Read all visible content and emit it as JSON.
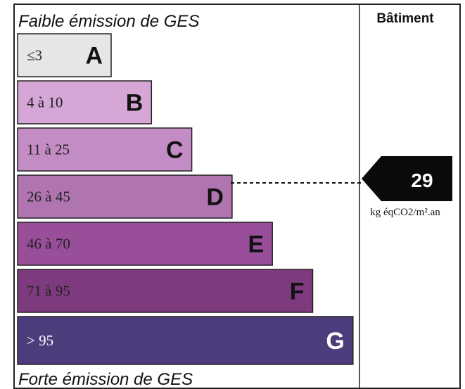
{
  "header": {
    "top_label": "Faible émission de GES",
    "bottom_label": "Forte émission de GES",
    "column_title": "Bâtiment"
  },
  "rows": [
    {
      "range": "≤3",
      "letter": "A",
      "color": "#e6e6e6"
    },
    {
      "range": "4 à 10",
      "letter": "B",
      "color": "#d6a6d6"
    },
    {
      "range": "11 à 25",
      "letter": "C",
      "color": "#c48cc4"
    },
    {
      "range": "26 à 45",
      "letter": "D",
      "color": "#b075b0"
    },
    {
      "range": "46 à 70",
      "letter": "E",
      "color": "#984e98"
    },
    {
      "range": "71 à 95",
      "letter": "F",
      "color": "#7e3a7e"
    },
    {
      "range": "> 95",
      "letter": "G",
      "color": "#4c3c7c"
    }
  ],
  "indicator": {
    "value": 29,
    "unit": "kg éqCO2/m².an"
  }
}
